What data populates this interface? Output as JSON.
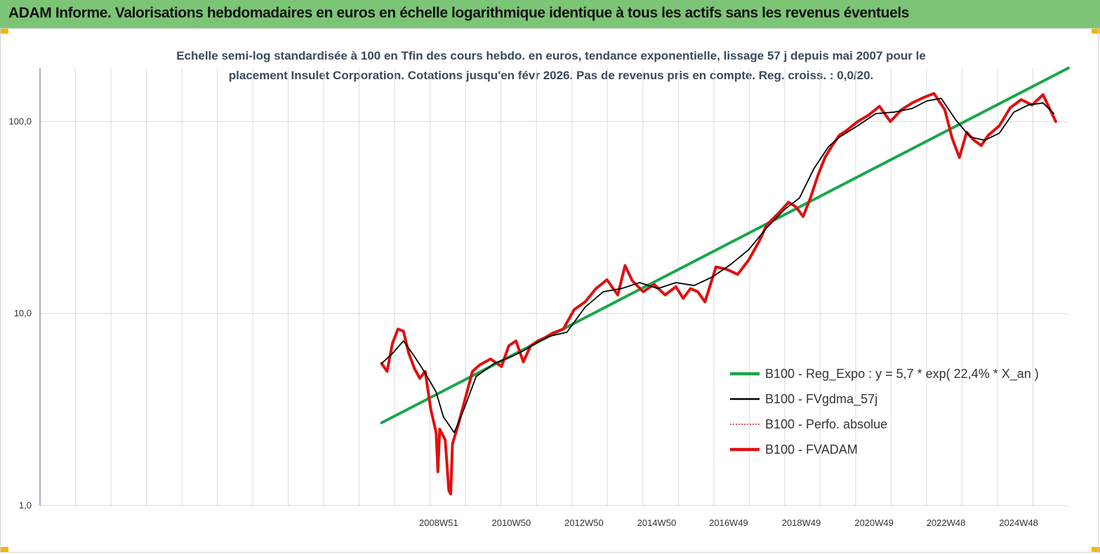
{
  "banner": {
    "title": "ADAM Informe. Valorisations hebdomadaires en euros en échelle logarithmique identique à tous les actifs sans les revenus éventuels",
    "color": "#7cc576"
  },
  "chart_data": {
    "type": "line",
    "title": "Echelle semi-log standardisée à 100 en Tfin des cours hebdo. en euros, tendance exponentielle, lissage 57 j depuis mai 2007 pour le placement Insulet Corporation. Cotations jusqu'en févr 2026. Pas de revenus pris en compte. Reg. croiss. : 0,0/20.",
    "title_lines": [
      "Echelle semi-log standardisée à 100 en Tfin des cours hebdo. en euros, tendance exponentielle, lissage 57 j depuis mai 2007 pour le",
      "placement Insulet Corporation. Cotations jusqu'en févr 2026. Pas de revenus pris en compte. Reg. croiss. : 0,0/20."
    ],
    "yscale": "log",
    "ylim": [
      1,
      190
    ],
    "y_ticks": [
      1,
      10,
      100
    ],
    "y_tick_labels": [
      "1,0",
      "10,0",
      "100,0"
    ],
    "xlim": [
      1998.0,
      2026.3
    ],
    "x_tick_labels": [
      "2008W51",
      "2010W50",
      "2012W50",
      "2014W50",
      "2016W49",
      "2018W49",
      "2020W49",
      "2022W48",
      "2024W48"
    ],
    "x_tick_positions": [
      2008.97,
      2010.97,
      2012.97,
      2014.97,
      2016.95,
      2018.95,
      2020.95,
      2022.93,
      2024.93
    ],
    "grid": true,
    "legend_position": "right",
    "series": [
      {
        "name": "B100 - Reg_Expo : y = 5,7 * exp( 22,4% *  X_an )",
        "color": "#1aa64a",
        "style": "solid-thick",
        "x": [
          2007.4,
          2026.3
        ],
        "y": [
          2.7,
          190
        ]
      },
      {
        "name": "B100 - FVgdma_57j",
        "color": "#000000",
        "style": "solid-thin",
        "x": [
          2007.4,
          2007.7,
          2008.0,
          2008.3,
          2008.6,
          2008.9,
          2009.1,
          2009.4,
          2009.7,
          2010.0,
          2010.5,
          2011.0,
          2011.3,
          2011.7,
          2012.0,
          2012.5,
          2013.0,
          2013.5,
          2014.0,
          2014.5,
          2015.0,
          2015.5,
          2016.0,
          2016.5,
          2017.0,
          2017.5,
          2018.0,
          2018.5,
          2018.9,
          2019.3,
          2019.7,
          2020.0,
          2020.5,
          2021.0,
          2021.5,
          2022.0,
          2022.4,
          2022.8,
          2023.2,
          2023.6,
          2024.0,
          2024.4,
          2024.8,
          2025.2,
          2025.6,
          2025.9
        ],
        "y": [
          5.5,
          6.2,
          7.2,
          6.0,
          4.9,
          3.9,
          2.9,
          2.4,
          3.3,
          4.7,
          5.5,
          6.0,
          6.4,
          7.1,
          7.6,
          8.0,
          10.8,
          13.0,
          13.5,
          14.5,
          13.5,
          14.5,
          14.0,
          15.5,
          18.0,
          21.5,
          28.0,
          35.0,
          40.0,
          57.0,
          74.0,
          83.0,
          95.0,
          110.0,
          112.0,
          117.0,
          128.0,
          132.0,
          102.0,
          83.0,
          80.0,
          87.0,
          112.0,
          122.0,
          125.0,
          110.0
        ]
      },
      {
        "name": "B100 - Perfo. absolue",
        "color": "#d61a1a",
        "style": "dotted"
      },
      {
        "name": "B100 - FVADAM",
        "color": "#e01010",
        "style": "solid-thick",
        "x": [
          2007.4,
          2007.55,
          2007.7,
          2007.85,
          2008.0,
          2008.15,
          2008.3,
          2008.45,
          2008.6,
          2008.75,
          2008.9,
          2008.95,
          2009.0,
          2009.15,
          2009.25,
          2009.3,
          2009.35,
          2009.5,
          2009.7,
          2009.9,
          2010.1,
          2010.4,
          2010.7,
          2010.9,
          2011.1,
          2011.3,
          2011.5,
          2011.7,
          2011.9,
          2012.1,
          2012.4,
          2012.7,
          2013.0,
          2013.3,
          2013.6,
          2013.9,
          2014.1,
          2014.3,
          2014.6,
          2014.9,
          2015.2,
          2015.5,
          2015.7,
          2015.9,
          2016.1,
          2016.3,
          2016.6,
          2016.9,
          2017.2,
          2017.5,
          2017.8,
          2018.0,
          2018.3,
          2018.6,
          2018.8,
          2019.0,
          2019.2,
          2019.4,
          2019.6,
          2019.8,
          2020.0,
          2020.2,
          2020.5,
          2020.8,
          2021.1,
          2021.4,
          2021.7,
          2022.0,
          2022.3,
          2022.6,
          2022.9,
          2023.1,
          2023.3,
          2023.5,
          2023.7,
          2023.9,
          2024.1,
          2024.4,
          2024.7,
          2025.0,
          2025.3,
          2025.6,
          2025.8,
          2025.95
        ],
        "y": [
          5.5,
          5.0,
          7.0,
          8.3,
          8.1,
          6.2,
          5.2,
          4.6,
          5.0,
          3.2,
          2.4,
          1.5,
          2.5,
          2.2,
          1.2,
          1.15,
          2.1,
          2.6,
          3.6,
          5.0,
          5.4,
          5.8,
          5.3,
          6.8,
          7.2,
          5.6,
          6.8,
          7.2,
          7.5,
          7.9,
          8.3,
          10.5,
          11.5,
          13.5,
          15.0,
          12.5,
          17.8,
          14.8,
          13.0,
          14.2,
          12.5,
          13.8,
          12.0,
          13.5,
          13.0,
          11.5,
          17.5,
          17.0,
          16.0,
          19.0,
          24.0,
          29.0,
          33.0,
          38.0,
          36.0,
          32.0,
          40.0,
          52.0,
          65.0,
          75.0,
          85.0,
          90.0,
          100.0,
          108.0,
          120.0,
          100.0,
          115.0,
          125.0,
          133.0,
          140.0,
          115.0,
          82.0,
          65.0,
          88.0,
          80.0,
          75.0,
          85.0,
          95.0,
          118.0,
          130.0,
          122.0,
          138.0,
          115.0,
          100.0
        ]
      }
    ]
  }
}
